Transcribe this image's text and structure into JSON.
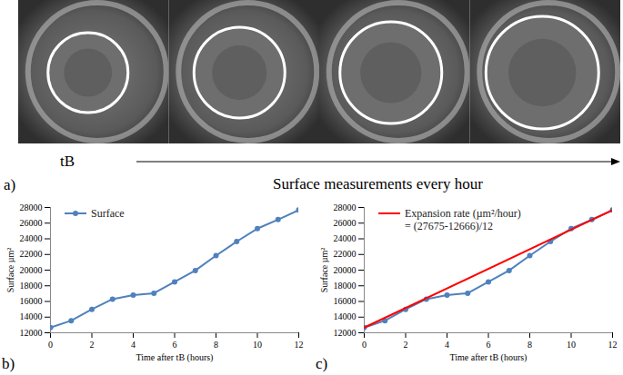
{
  "panel_a": {
    "label": "a)",
    "start_label": "tB",
    "arrow_text": "Surface measurements every hour",
    "frames": 4
  },
  "chart_data": [
    {
      "type": "line",
      "panel": "b)",
      "x": [
        0,
        1,
        2,
        3,
        4,
        5,
        6,
        7,
        8,
        9,
        10,
        11,
        12
      ],
      "series": [
        {
          "name": "Surface",
          "color": "#4f81bd",
          "marker": "circle",
          "values": [
            12666,
            13550,
            15000,
            16300,
            16800,
            17050,
            18500,
            19950,
            21850,
            23650,
            25300,
            26450,
            27675
          ]
        }
      ],
      "x_label": "Time after tB (hours)",
      "y_label": "Surface µm²",
      "xlim": [
        0,
        12
      ],
      "xticks": [
        0,
        2,
        4,
        6,
        8,
        10,
        12
      ],
      "ylim": [
        12000,
        28000
      ],
      "yticks": [
        12000,
        14000,
        16000,
        18000,
        20000,
        22000,
        24000,
        26000,
        28000
      ],
      "grid": false,
      "legend": "upper left"
    },
    {
      "type": "line",
      "panel": "c)",
      "x": [
        0,
        1,
        2,
        3,
        4,
        5,
        6,
        7,
        8,
        9,
        10,
        11,
        12
      ],
      "series": [
        {
          "name": null,
          "color": "#4f81bd",
          "marker": "circle",
          "values": [
            12666,
            13550,
            15000,
            16300,
            16800,
            17050,
            18500,
            19950,
            21850,
            23650,
            25300,
            26450,
            27675
          ]
        },
        {
          "name": "Expansion rate (µm²/hour)",
          "color": "#ff0000",
          "marker": "none",
          "x": [
            0,
            12
          ],
          "values": [
            12666,
            27675
          ]
        }
      ],
      "annotation": "= (27675-12666)/12",
      "x_label": "Time after tB (hours)",
      "y_label": "Surface µm²",
      "xlim": [
        0,
        12
      ],
      "xticks": [
        0,
        2,
        4,
        6,
        8,
        10,
        12
      ],
      "ylim": [
        12000,
        28000
      ],
      "yticks": [
        12000,
        14000,
        16000,
        18000,
        20000,
        22000,
        24000,
        26000,
        28000
      ],
      "grid": false,
      "legend": "upper left"
    }
  ]
}
